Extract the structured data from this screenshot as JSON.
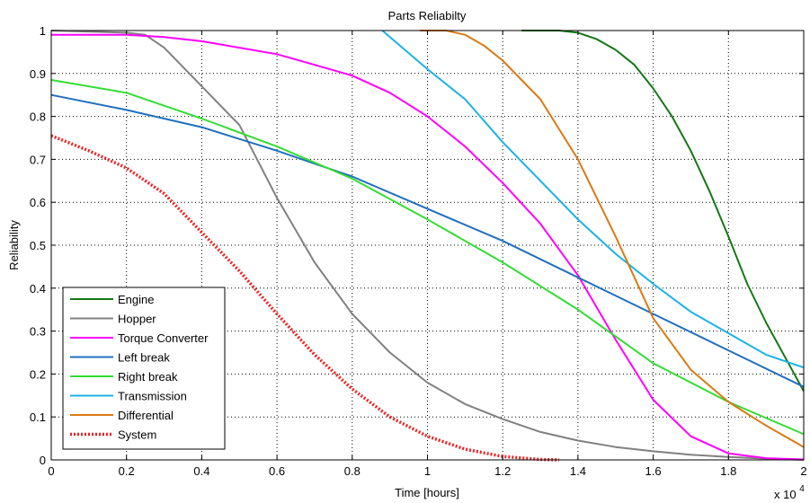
{
  "chart_data": {
    "type": "line",
    "title": "Parts Reliabilty",
    "xlabel": "Time [hours]",
    "ylabel": "Reliability",
    "x_exponent_label": "x 10",
    "x_exponent_power": "4",
    "xlim": [
      0,
      2
    ],
    "ylim": [
      0,
      1
    ],
    "xticks": [
      "0",
      "0.2",
      "0.4",
      "0.6",
      "0.8",
      "1",
      "1.2",
      "1.4",
      "1.6",
      "1.8",
      "2"
    ],
    "yticks": [
      "0",
      "0.1",
      "0.2",
      "0.3",
      "0.4",
      "0.5",
      "0.6",
      "0.7",
      "0.8",
      "0.9",
      "1"
    ],
    "grid": true,
    "legend_position": "bottom-left",
    "series": [
      {
        "name": "Engine",
        "color": "#147814",
        "dashed": false,
        "x": [
          1.25,
          1.35,
          1.4,
          1.45,
          1.5,
          1.55,
          1.6,
          1.65,
          1.7,
          1.75,
          1.8,
          1.85,
          1.9,
          1.95,
          2.0
        ],
        "y": [
          1.0,
          1.0,
          0.995,
          0.98,
          0.955,
          0.92,
          0.865,
          0.8,
          0.72,
          0.625,
          0.52,
          0.41,
          0.32,
          0.24,
          0.16
        ]
      },
      {
        "name": "Hopper",
        "color": "#808080",
        "dashed": false,
        "x": [
          0,
          0.2,
          0.25,
          0.3,
          0.4,
          0.5,
          0.6,
          0.7,
          0.8,
          0.9,
          1.0,
          1.1,
          1.2,
          1.3,
          1.4,
          1.5,
          1.6,
          1.7,
          1.8,
          1.9,
          2.0
        ],
        "y": [
          1.0,
          0.995,
          0.99,
          0.96,
          0.87,
          0.78,
          0.61,
          0.46,
          0.34,
          0.25,
          0.18,
          0.13,
          0.095,
          0.065,
          0.045,
          0.03,
          0.02,
          0.012,
          0.007,
          0.003,
          0.0
        ]
      },
      {
        "name": "Torque Converter",
        "color": "#ff00ff",
        "dashed": false,
        "x": [
          0,
          0.2,
          0.3,
          0.4,
          0.5,
          0.6,
          0.7,
          0.8,
          0.9,
          1.0,
          1.1,
          1.2,
          1.3,
          1.4,
          1.5,
          1.6,
          1.7,
          1.8,
          1.9,
          2.0
        ],
        "y": [
          0.99,
          0.99,
          0.985,
          0.975,
          0.96,
          0.945,
          0.92,
          0.895,
          0.855,
          0.8,
          0.73,
          0.645,
          0.55,
          0.43,
          0.28,
          0.14,
          0.055,
          0.015,
          0.004,
          0.001
        ]
      },
      {
        "name": "Left break",
        "color": "#1f6fbf",
        "dashed": false,
        "x": [
          0,
          0.2,
          0.4,
          0.6,
          0.8,
          1.0,
          1.2,
          1.4,
          1.6,
          1.8,
          2.0
        ],
        "y": [
          0.85,
          0.815,
          0.775,
          0.72,
          0.66,
          0.585,
          0.51,
          0.425,
          0.34,
          0.255,
          0.17
        ]
      },
      {
        "name": "Right break",
        "color": "#33dd33",
        "dashed": false,
        "x": [
          0,
          0.2,
          0.4,
          0.6,
          0.8,
          1.0,
          1.2,
          1.4,
          1.6,
          1.8,
          2.0
        ],
        "y": [
          0.885,
          0.855,
          0.795,
          0.73,
          0.655,
          0.56,
          0.46,
          0.35,
          0.225,
          0.135,
          0.06
        ]
      },
      {
        "name": "Transmission",
        "color": "#1ab2e6",
        "dashed": false,
        "x": [
          0.88,
          1.0,
          1.1,
          1.2,
          1.3,
          1.4,
          1.5,
          1.6,
          1.7,
          1.8,
          1.9,
          2.0
        ],
        "y": [
          1.0,
          0.91,
          0.84,
          0.74,
          0.65,
          0.56,
          0.48,
          0.41,
          0.345,
          0.295,
          0.245,
          0.215
        ]
      },
      {
        "name": "Differential",
        "color": "#d97a14",
        "dashed": false,
        "x": [
          0.98,
          1.05,
          1.1,
          1.15,
          1.2,
          1.3,
          1.4,
          1.5,
          1.6,
          1.7,
          1.8,
          1.9,
          2.0
        ],
        "y": [
          1.0,
          1.0,
          0.99,
          0.965,
          0.93,
          0.84,
          0.7,
          0.52,
          0.33,
          0.21,
          0.135,
          0.08,
          0.03
        ]
      },
      {
        "name": "System",
        "color": "#ee2222",
        "dashed": true,
        "x": [
          0,
          0.1,
          0.2,
          0.3,
          0.4,
          0.5,
          0.6,
          0.7,
          0.8,
          0.9,
          1.0,
          1.1,
          1.2,
          1.3,
          1.35
        ],
        "y": [
          0.755,
          0.72,
          0.68,
          0.62,
          0.53,
          0.44,
          0.34,
          0.245,
          0.165,
          0.1,
          0.055,
          0.025,
          0.008,
          0.001,
          0.0
        ]
      }
    ]
  }
}
